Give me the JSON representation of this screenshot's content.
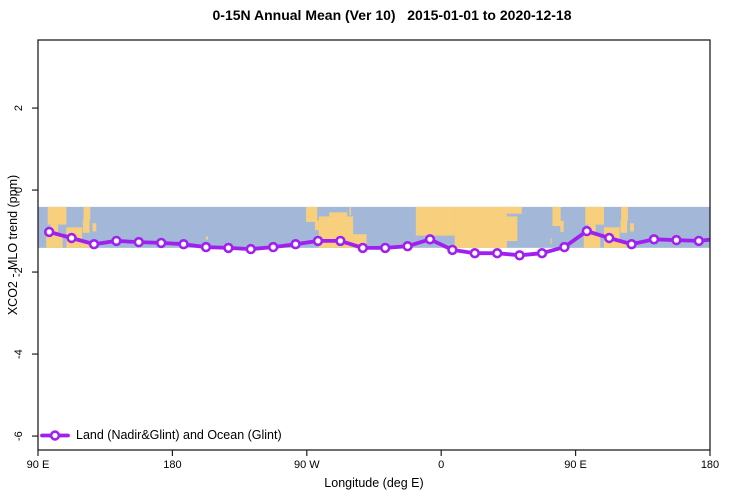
{
  "chart_data": {
    "type": "line",
    "title": "0-15N Annual Mean (Ver 10)   2015-01-01 to 2020-12-18",
    "xlabel": "Longitude (deg E)",
    "ylabel": "XCO2 - MLO trend (ppm)",
    "xlim": [
      90,
      540
    ],
    "ylim": [
      -6.34,
      3.66
    ],
    "grid": false,
    "x_ticks": [
      {
        "v": 90,
        "label": "90 E"
      },
      {
        "v": 180,
        "label": "180"
      },
      {
        "v": 270,
        "label": "90 W"
      },
      {
        "v": 360,
        "label": "0"
      },
      {
        "v": 450,
        "label": "90 E"
      },
      {
        "v": 540,
        "label": "180"
      }
    ],
    "y_ticks": [
      {
        "v": 2,
        "label": "2"
      },
      {
        "v": 0,
        "label": "0"
      },
      {
        "v": -2,
        "label": "-2"
      },
      {
        "v": -4,
        "label": "-4"
      },
      {
        "v": -6,
        "label": "-6"
      }
    ],
    "legend": {
      "position": "bottom-left",
      "entries": [
        {
          "label": "Land (Nadir&Glint) and Ocean (Glint)",
          "color": "#A020F0",
          "marker": "open-circle"
        }
      ]
    },
    "series": [
      {
        "name": "Land (Nadir&Glint) and Ocean (Glint)",
        "color": "#A020F0",
        "x": [
          97.5,
          112.5,
          127.5,
          142.5,
          157.5,
          172.5,
          187.5,
          202.5,
          217.5,
          232.5,
          247.5,
          262.5,
          277.5,
          292.5,
          307.5,
          322.5,
          337.5,
          352.5,
          367.5,
          382.5,
          397.5,
          412.5,
          427.5,
          442.5,
          457.5,
          472.5,
          487.5,
          502.5,
          517.5,
          532.5
        ],
        "y": [
          -1.02,
          -1.17,
          -1.32,
          -1.24,
          -1.27,
          -1.29,
          -1.32,
          -1.39,
          -1.41,
          -1.44,
          -1.39,
          -1.32,
          -1.24,
          -1.24,
          -1.41,
          -1.41,
          -1.37,
          -1.2,
          -1.46,
          -1.54,
          -1.54,
          -1.59,
          -1.54,
          -1.39,
          -1.0,
          -1.17,
          -1.32,
          -1.2,
          -1.22,
          -1.24
        ],
        "line_extension": {
          "x": 540,
          "y": -1.21
        }
      }
    ],
    "map_strip": {
      "description": "world map band 0-15N drawn across plot",
      "lat_range": [
        0,
        15
      ],
      "y_band_values": [
        -1.41,
        -0.41
      ],
      "ocean_color": "#a3b8d8",
      "land_color": "#f8cf7c",
      "land_rects": [
        [
          96.5,
          109,
          8.5,
          15
        ],
        [
          98.5,
          103.5,
          1,
          8.5
        ],
        [
          95.5,
          106.5,
          0,
          5.5
        ],
        [
          109,
          119.5,
          0,
          7.5
        ],
        [
          117.5,
          125,
          0,
          2.2
        ],
        [
          120,
          124.5,
          5.5,
          10
        ],
        [
          120.5,
          125,
          10,
          15
        ],
        [
          126.5,
          129,
          6,
          9
        ],
        [
          456.5,
          469,
          8.5,
          15
        ],
        [
          458.5,
          463.5,
          1,
          8.5
        ],
        [
          455.5,
          466.5,
          0,
          5.5
        ],
        [
          469,
          479.5,
          0,
          7.5
        ],
        [
          477.5,
          485,
          0,
          2.2
        ],
        [
          480,
          484.5,
          5.5,
          10
        ],
        [
          480.5,
          485,
          10,
          15
        ],
        [
          486.5,
          489,
          6,
          9
        ],
        [
          434.5,
          440,
          8,
          15
        ],
        [
          439.8,
          442,
          5.8,
          9.9
        ],
        [
          433.2,
          434,
          1.5,
          3.5
        ],
        [
          343,
          369,
          4.5,
          15
        ],
        [
          369,
          404,
          0,
          15
        ],
        [
          404,
          411,
          2.5,
          11.5
        ],
        [
          403,
          414,
          12.5,
          15
        ],
        [
          269.5,
          277,
          9.5,
          15
        ],
        [
          275.5,
          282,
          6.5,
          10
        ],
        [
          278,
          301,
          0,
          11.5
        ],
        [
          285,
          297,
          11.5,
          13
        ],
        [
          301,
          310,
          0,
          5
        ],
        [
          298.6,
          299.6,
          12,
          15
        ],
        [
          160,
          161.2,
          1.5,
          2.8
        ],
        [
          172,
          173.5,
          0.5,
          2.2
        ],
        [
          202.5,
          203.8,
          3,
          4.2
        ]
      ]
    }
  },
  "colors": {
    "line": "#A020F0",
    "ocean": "#a3b8d8",
    "land": "#f8cf7c",
    "axis": "#1f1f1f",
    "background": "#ffffff"
  }
}
